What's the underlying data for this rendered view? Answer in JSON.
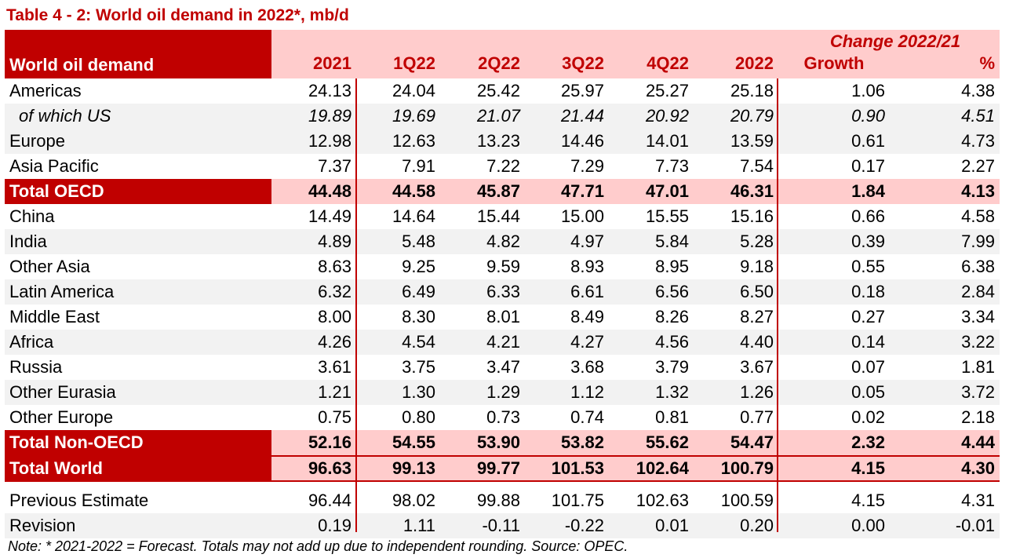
{
  "title": "Table 4 - 2: World oil demand in 2022*, mb/d",
  "header": {
    "row_label": "World oil demand",
    "change_label": "Change 2022/21",
    "columns": [
      "2021",
      "1Q22",
      "2Q22",
      "3Q22",
      "4Q22",
      "2022",
      "Growth",
      "%"
    ]
  },
  "rows": [
    {
      "label": "Americas",
      "values": [
        "24.13",
        "24.04",
        "25.42",
        "25.97",
        "25.27",
        "25.18",
        "1.06",
        "4.38"
      ]
    },
    {
      "label": "of which US",
      "values": [
        "19.89",
        "19.69",
        "21.07",
        "21.44",
        "20.92",
        "20.79",
        "0.90",
        "4.51"
      ]
    },
    {
      "label": "Europe",
      "values": [
        "12.98",
        "12.63",
        "13.23",
        "14.46",
        "14.01",
        "13.59",
        "0.61",
        "4.73"
      ]
    },
    {
      "label": "Asia Pacific",
      "values": [
        "7.37",
        "7.91",
        "7.22",
        "7.29",
        "7.73",
        "7.54",
        "0.17",
        "2.27"
      ]
    },
    {
      "label": "Total OECD",
      "values": [
        "44.48",
        "44.58",
        "45.87",
        "47.71",
        "47.01",
        "46.31",
        "1.84",
        "4.13"
      ]
    },
    {
      "label": "China",
      "values": [
        "14.49",
        "14.64",
        "15.44",
        "15.00",
        "15.55",
        "15.16",
        "0.66",
        "4.58"
      ]
    },
    {
      "label": "India",
      "values": [
        "4.89",
        "5.48",
        "4.82",
        "4.97",
        "5.84",
        "5.28",
        "0.39",
        "7.99"
      ]
    },
    {
      "label": "Other Asia",
      "values": [
        "8.63",
        "9.25",
        "9.59",
        "8.93",
        "8.95",
        "9.18",
        "0.55",
        "6.38"
      ]
    },
    {
      "label": "Latin America",
      "values": [
        "6.32",
        "6.49",
        "6.33",
        "6.61",
        "6.56",
        "6.50",
        "0.18",
        "2.84"
      ]
    },
    {
      "label": "Middle East",
      "values": [
        "8.00",
        "8.30",
        "8.01",
        "8.49",
        "8.26",
        "8.27",
        "0.27",
        "3.34"
      ]
    },
    {
      "label": "Africa",
      "values": [
        "4.26",
        "4.54",
        "4.21",
        "4.27",
        "4.56",
        "4.40",
        "0.14",
        "3.22"
      ]
    },
    {
      "label": "Russia",
      "values": [
        "3.61",
        "3.75",
        "3.47",
        "3.68",
        "3.79",
        "3.67",
        "0.07",
        "1.81"
      ]
    },
    {
      "label": "Other Eurasia",
      "values": [
        "1.21",
        "1.30",
        "1.29",
        "1.12",
        "1.32",
        "1.26",
        "0.05",
        "3.72"
      ]
    },
    {
      "label": "Other Europe",
      "values": [
        "0.75",
        "0.80",
        "0.73",
        "0.74",
        "0.81",
        "0.77",
        "0.02",
        "2.18"
      ]
    },
    {
      "label": "Total Non-OECD",
      "values": [
        "52.16",
        "54.55",
        "53.90",
        "53.82",
        "55.62",
        "54.47",
        "2.32",
        "4.44"
      ]
    },
    {
      "label": "Total World",
      "values": [
        "96.63",
        "99.13",
        "99.77",
        "101.53",
        "102.64",
        "100.79",
        "4.15",
        "4.30"
      ]
    }
  ],
  "footer_rows": [
    {
      "label": "Previous Estimate",
      "values": [
        "96.44",
        "98.02",
        "99.88",
        "101.75",
        "102.63",
        "100.59",
        "4.15",
        "4.31"
      ]
    },
    {
      "label": "Revision",
      "values": [
        "0.19",
        "1.11",
        "-0.11",
        "-0.22",
        "0.01",
        "0.20",
        "0.00",
        "-0.01"
      ]
    }
  ],
  "note": "Note: * 2021-2022 = Forecast. Totals may not add up due to independent rounding. Source: OPEC.",
  "colors": {
    "accent": "#c00000",
    "highlight": "#ffcccc",
    "stripe": "#f2f2f2"
  }
}
